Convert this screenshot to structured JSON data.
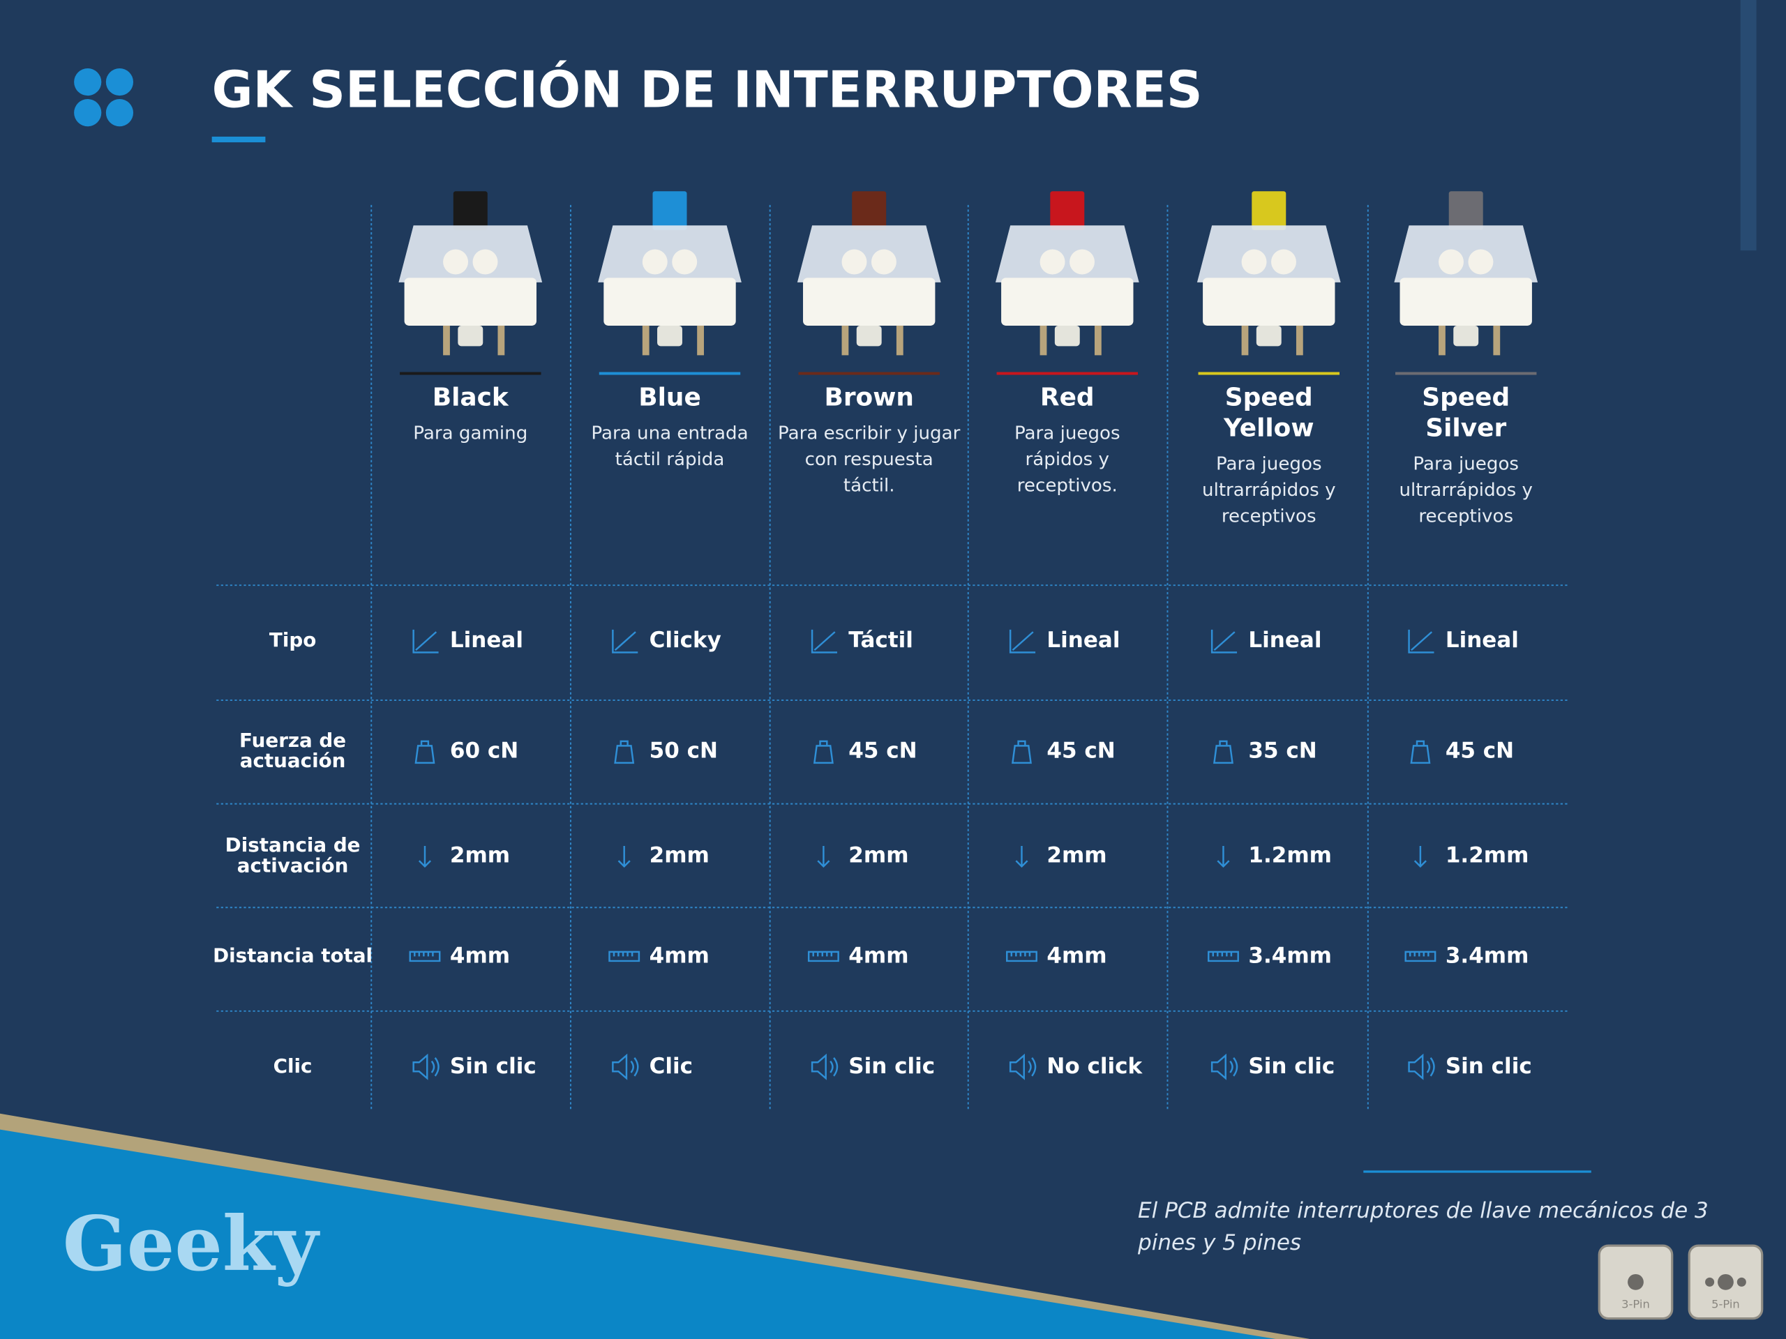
{
  "header": {
    "title": "GK SELECCIÓN DE INTERRUPTORES"
  },
  "table": {
    "row_labels": [
      [
        "Tipo"
      ],
      [
        "Fuerza de",
        "actuación"
      ],
      [
        "Distancia de",
        "activación"
      ],
      [
        "Distancia total"
      ],
      [
        "Clic"
      ]
    ],
    "columns": [
      {
        "name": [
          "Black"
        ],
        "color": "#1a1a1a",
        "description": [
          "Para gaming"
        ],
        "values": [
          "Lineal",
          "60 cN",
          "2mm",
          "4mm",
          "Sin clic"
        ]
      },
      {
        "name": [
          "Blue"
        ],
        "color": "#1e8fd6",
        "description": [
          "Para una entrada",
          "táctil rápida"
        ],
        "values": [
          "Clicky",
          "50 cN",
          "2mm",
          "4mm",
          "Clic"
        ]
      },
      {
        "name": [
          "Brown"
        ],
        "color": "#6b2a1a",
        "description": [
          "Para escribir y jugar",
          "con respuesta",
          "táctil."
        ],
        "values": [
          "Táctil",
          "45 cN",
          "2mm",
          "4mm",
          "Sin clic"
        ]
      },
      {
        "name": [
          "Red"
        ],
        "color": "#c8161d",
        "description": [
          "Para juegos",
          "rápidos y",
          "receptivos."
        ],
        "values": [
          "Lineal",
          "45 cN",
          "2mm",
          "4mm",
          "No click"
        ]
      },
      {
        "name": [
          "Speed",
          "Yellow"
        ],
        "color": "#d8c81e",
        "description": [
          "Para juegos",
          "ultrarrápidos y",
          "receptivos"
        ],
        "values": [
          "Lineal",
          "35 cN",
          "1.2mm",
          "3.4mm",
          "Sin clic"
        ]
      },
      {
        "name": [
          "Speed",
          "Silver"
        ],
        "color": "#6c6c72",
        "description": [
          "Para juegos",
          "ultrarrápidos y",
          "receptivos"
        ],
        "values": [
          "Lineal",
          "45 cN",
          "1.2mm",
          "3.4mm",
          "Sin clic"
        ]
      }
    ]
  },
  "footer": {
    "logo": "Geeky",
    "note": [
      "El PCB admite interruptores de llave mecánicos de 3",
      "pines y 5 pines"
    ],
    "pins": [
      "3-Pin",
      "5-Pin"
    ]
  }
}
